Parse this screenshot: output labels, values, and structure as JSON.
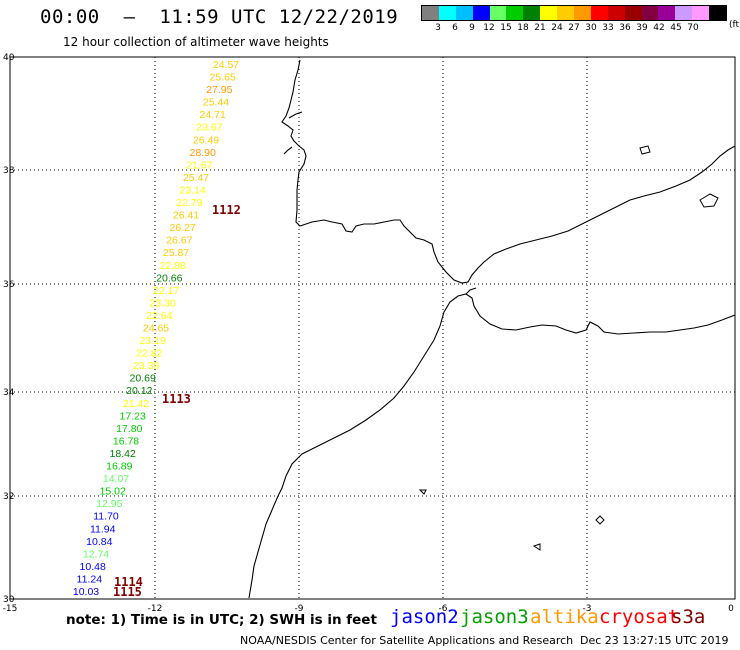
{
  "header": {
    "title": "00:00  –  11:59 UTC 12/22/2019",
    "subtitle": "12 hour collection of altimeter wave heights"
  },
  "color_scale": {
    "unit": "(ft)",
    "swatches": [
      "#808080",
      "#00ffff",
      "#00bfff",
      "#0000ff",
      "#66ff66",
      "#00cc00",
      "#008000",
      "#ffff00",
      "#ffcc00",
      "#ff9900",
      "#ff0000",
      "#cc0000",
      "#990000",
      "#800040",
      "#990099",
      "#cc99ff",
      "#ff99ff",
      "#000000"
    ],
    "labels": [
      "3",
      "6",
      "9",
      "12",
      "15",
      "18",
      "21",
      "24",
      "27",
      "30",
      "33",
      "36",
      "39",
      "42",
      "45",
      "70"
    ]
  },
  "axes": {
    "lat_labels": [
      "40",
      "38",
      "36",
      "34",
      "32",
      "30"
    ],
    "lon_labels": [
      "-15",
      "-12",
      "-9",
      "-6",
      "-3",
      "0"
    ]
  },
  "observations": [
    {
      "v": "24.57",
      "c": "#ffcc00"
    },
    {
      "v": "25.65",
      "c": "#ffcc00"
    },
    {
      "v": "27.95",
      "c": "#ff9900"
    },
    {
      "v": "25.44",
      "c": "#ffcc00"
    },
    {
      "v": "24.71",
      "c": "#ffcc00"
    },
    {
      "v": "23.67",
      "c": "#ffff00"
    },
    {
      "v": "26.49",
      "c": "#ffcc00"
    },
    {
      "v": "28.90",
      "c": "#ff9900"
    },
    {
      "v": "21.67",
      "c": "#ffff00"
    },
    {
      "v": "25.47",
      "c": "#ffcc00"
    },
    {
      "v": "23.14",
      "c": "#ffff00"
    },
    {
      "v": "22.79",
      "c": "#ffff00"
    },
    {
      "v": "26.41",
      "c": "#ffcc00"
    },
    {
      "v": "26.27",
      "c": "#ffcc00"
    },
    {
      "v": "26.67",
      "c": "#ffcc00"
    },
    {
      "v": "25.87",
      "c": "#ffcc00"
    },
    {
      "v": "22.88",
      "c": "#ffff00"
    },
    {
      "v": "20.66",
      "c": "#008000"
    },
    {
      "v": "22.17",
      "c": "#ffff00"
    },
    {
      "v": "23.30",
      "c": "#ffff00"
    },
    {
      "v": "22.64",
      "c": "#ffff00"
    },
    {
      "v": "24.65",
      "c": "#ffcc00"
    },
    {
      "v": "23.19",
      "c": "#ffff00"
    },
    {
      "v": "22.82",
      "c": "#ffff00"
    },
    {
      "v": "23.39",
      "c": "#ffff00"
    },
    {
      "v": "20.69",
      "c": "#008000"
    },
    {
      "v": "20.12",
      "c": "#008000"
    },
    {
      "v": "21.42",
      "c": "#ffff00"
    },
    {
      "v": "17.23",
      "c": "#00cc00"
    },
    {
      "v": "17.80",
      "c": "#00cc00"
    },
    {
      "v": "16.78",
      "c": "#00cc00"
    },
    {
      "v": "18.42",
      "c": "#008000"
    },
    {
      "v": "16.89",
      "c": "#00cc00"
    },
    {
      "v": "14.07",
      "c": "#66ff66"
    },
    {
      "v": "15.02",
      "c": "#00cc00"
    },
    {
      "v": "12.95",
      "c": "#66ff66"
    },
    {
      "v": "11.70",
      "c": "#0000ff"
    },
    {
      "v": "11.94",
      "c": "#0000ff"
    },
    {
      "v": "10.84",
      "c": "#0000ff"
    },
    {
      "v": "12.74",
      "c": "#66ff66"
    },
    {
      "v": "10.48",
      "c": "#0000ff"
    },
    {
      "v": "11.24",
      "c": "#0000ff"
    },
    {
      "v": "10.03",
      "c": "#0000ff"
    }
  ],
  "markers": [
    {
      "label": "1112",
      "color": "#800000"
    },
    {
      "label": "1113",
      "color": "#800000"
    },
    {
      "label": "1114",
      "color": "#800000"
    },
    {
      "label": "1115",
      "color": "#800000"
    }
  ],
  "footer": {
    "note": "note:  1) Time is in UTC;  2) SWH is in feet",
    "legend": [
      {
        "name": "jason2",
        "color": "#0000ff"
      },
      {
        "name": "jason3",
        "color": "#00a000"
      },
      {
        "name": "altika",
        "color": "#ff9900"
      },
      {
        "name": "cryosat",
        "color": "#ff0000"
      },
      {
        "name": "s3a",
        "color": "#800000"
      }
    ],
    "credit": "NOAA/NESDIS Center for Satellite Applications and Research",
    "timestamp": "Dec 23 13:27:15 UTC 2019"
  }
}
